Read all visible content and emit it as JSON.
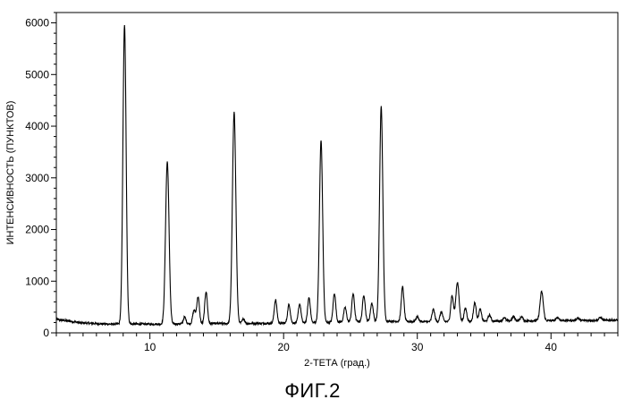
{
  "figure": {
    "caption": "ФИГ.2"
  },
  "chart_data": {
    "type": "line",
    "xlabel": "2-ТЕТА (град.)",
    "ylabel": "ИНТЕНСИВНОСТЬ (ПУНКТОВ)",
    "xlim": [
      3,
      45
    ],
    "ylim": [
      0,
      6200
    ],
    "x_ticks": [
      10,
      20,
      30,
      40
    ],
    "y_ticks": [
      0,
      1000,
      2000,
      3000,
      4000,
      5000,
      6000
    ],
    "grid": false,
    "line_color": "#000000",
    "series": [
      {
        "baseline": [
          [
            3.0,
            260
          ],
          [
            5.0,
            190
          ],
          [
            7.0,
            170
          ],
          [
            9.0,
            170
          ],
          [
            11.0,
            170
          ],
          [
            13.0,
            175
          ],
          [
            15.0,
            180
          ],
          [
            17.0,
            180
          ],
          [
            19.0,
            185
          ],
          [
            21.0,
            190
          ],
          [
            23.0,
            200
          ],
          [
            25.0,
            215
          ],
          [
            27.0,
            230
          ],
          [
            29.0,
            220
          ],
          [
            31.0,
            215
          ],
          [
            33.0,
            220
          ],
          [
            35.0,
            225
          ],
          [
            37.0,
            230
          ],
          [
            39.0,
            235
          ],
          [
            41.0,
            240
          ],
          [
            43.0,
            240
          ],
          [
            45.0,
            245
          ]
        ],
        "peaks": [
          [
            8.1,
            5780,
            0.12
          ],
          [
            11.3,
            3140,
            0.13
          ],
          [
            12.6,
            130,
            0.1
          ],
          [
            13.3,
            260,
            0.1
          ],
          [
            13.6,
            520,
            0.1
          ],
          [
            14.2,
            620,
            0.1
          ],
          [
            16.3,
            4080,
            0.13
          ],
          [
            17.0,
            90,
            0.1
          ],
          [
            19.4,
            450,
            0.1
          ],
          [
            20.4,
            360,
            0.1
          ],
          [
            21.2,
            370,
            0.1
          ],
          [
            21.9,
            490,
            0.1
          ],
          [
            22.8,
            3520,
            0.12
          ],
          [
            23.8,
            560,
            0.1
          ],
          [
            24.6,
            280,
            0.1
          ],
          [
            25.2,
            540,
            0.1
          ],
          [
            26.0,
            510,
            0.1
          ],
          [
            26.6,
            350,
            0.1
          ],
          [
            27.3,
            4150,
            0.12
          ],
          [
            28.9,
            670,
            0.1
          ],
          [
            30.0,
            100,
            0.1
          ],
          [
            31.2,
            240,
            0.1
          ],
          [
            31.8,
            190,
            0.1
          ],
          [
            32.6,
            500,
            0.1
          ],
          [
            33.0,
            760,
            0.12
          ],
          [
            33.6,
            260,
            0.1
          ],
          [
            34.3,
            360,
            0.1
          ],
          [
            34.7,
            230,
            0.1
          ],
          [
            35.4,
            120,
            0.1
          ],
          [
            36.5,
            70,
            0.1
          ],
          [
            37.2,
            90,
            0.1
          ],
          [
            37.8,
            80,
            0.1
          ],
          [
            39.3,
            560,
            0.12
          ],
          [
            40.5,
            60,
            0.1
          ],
          [
            42.0,
            50,
            0.1
          ],
          [
            43.7,
            60,
            0.1
          ]
        ]
      }
    ]
  }
}
